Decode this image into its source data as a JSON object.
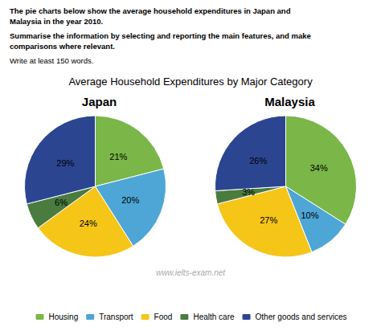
{
  "title": "Average Household Expenditures by Major Category",
  "annotations": [
    "The pie charts below show the average household expenditures in Japan and",
    "Malaysia in the year 2010.",
    "Summarise the information by selecting and reporting the main features, and make",
    "comparisons where relevant.",
    "Write at least 150 words."
  ],
  "watermark": "www.ielts-exam.net",
  "chart_data": [
    {
      "type": "pie",
      "title": "Japan",
      "categories": [
        "Housing",
        "Transport",
        "Food",
        "Health care",
        "Other goods and services"
      ],
      "values": [
        21,
        20,
        24,
        6,
        29
      ],
      "value_labels": [
        "21%",
        "20%",
        "24%",
        "6%",
        "29%"
      ],
      "colors": [
        "#7ab648",
        "#4da6d5",
        "#f5c518",
        "#4a7c3f",
        "#2b4590"
      ],
      "data_labels": true,
      "legend": "bottom"
    },
    {
      "type": "pie",
      "title": "Malaysia",
      "categories": [
        "Housing",
        "Transport",
        "Food",
        "Health care",
        "Other goods and services"
      ],
      "values": [
        34,
        10,
        27,
        3,
        26
      ],
      "value_labels": [
        "34%",
        "10%",
        "27%",
        "3%",
        "26%"
      ],
      "colors": [
        "#7ab648",
        "#4da6d5",
        "#f5c518",
        "#4a7c3f",
        "#2b4590"
      ],
      "data_labels": true,
      "legend": "bottom"
    }
  ]
}
